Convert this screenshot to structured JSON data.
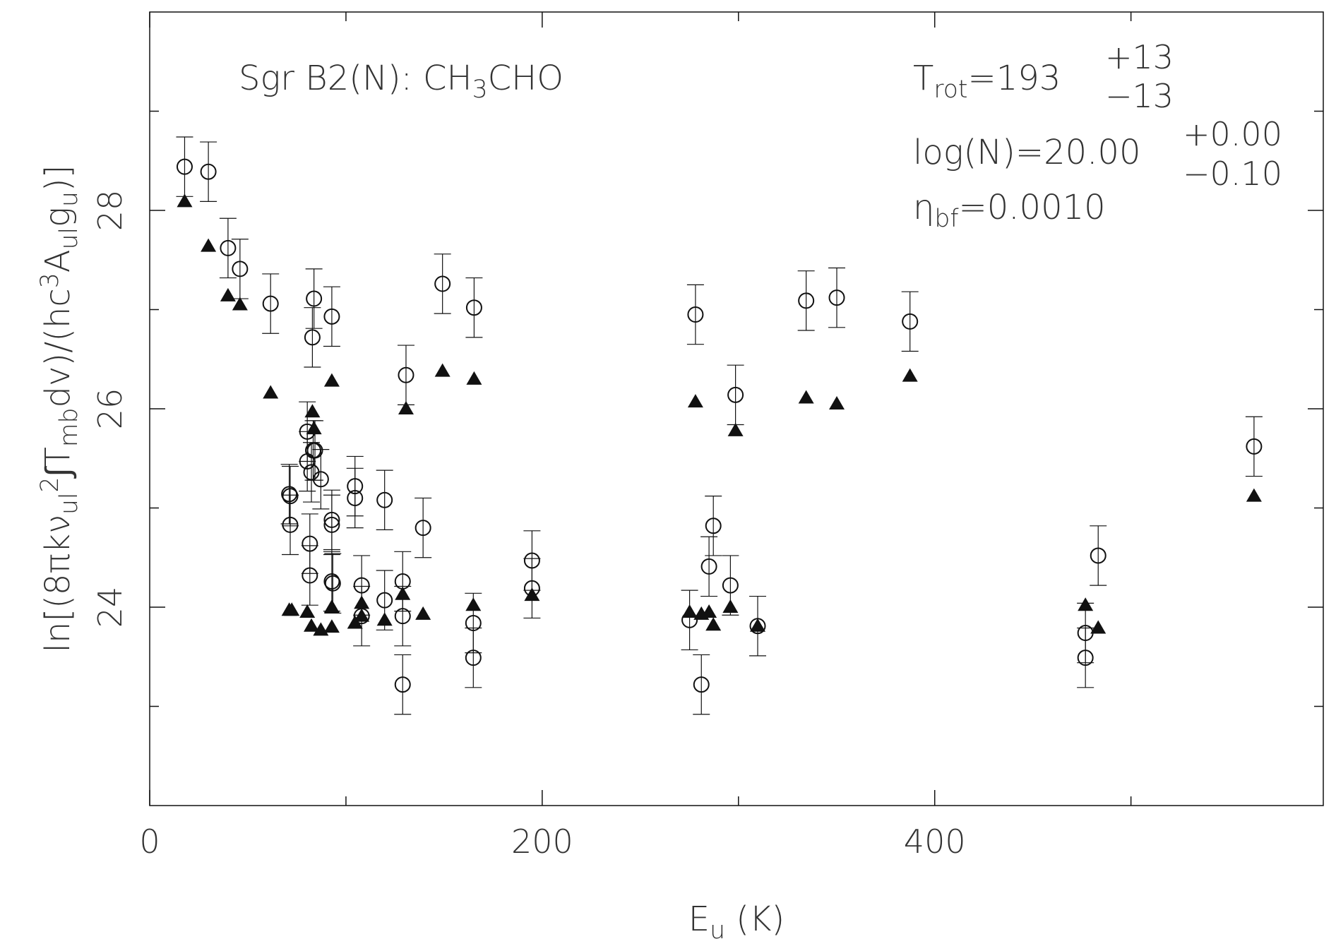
{
  "chart_data": {
    "type": "scatter",
    "xlabel": [
      {
        "text": "E"
      },
      {
        "text": "u",
        "shift": "sub"
      },
      {
        "text": " (K)"
      }
    ],
    "ylabel": [
      {
        "text": "ln[(8πkν"
      },
      {
        "text": "ul",
        "shift": "sub"
      },
      {
        "text": "2",
        "shift": "super"
      },
      {
        "text": "∫T"
      },
      {
        "text": "mb",
        "shift": "sub"
      },
      {
        "text": "dv)/(hc"
      },
      {
        "text": "3",
        "shift": "super"
      },
      {
        "text": "A"
      },
      {
        "text": "ul",
        "shift": "sub"
      },
      {
        "text": "g"
      },
      {
        "text": "u",
        "shift": "sub"
      },
      {
        "text": ")]"
      }
    ],
    "annotations": [
      {
        "parts": [
          {
            "text": "Sgr B2(N): CH"
          },
          {
            "text": "3",
            "shift": "sub"
          },
          {
            "text": "CHO"
          }
        ]
      },
      {
        "parts": [
          {
            "text": "T"
          },
          {
            "text": "rot",
            "shift": "sub"
          },
          {
            "text": "=193"
          }
        ],
        "plus": "+13",
        "minus": "−13"
      },
      {
        "parts": [
          {
            "text": "log(N)=20.00"
          }
        ],
        "plus": "+0.00",
        "minus": "−0.10"
      },
      {
        "parts": [
          {
            "text": "η"
          },
          {
            "text": "bf",
            "shift": "sub"
          },
          {
            "text": "=0.0010"
          }
        ]
      }
    ],
    "xlim": [
      0,
      598
    ],
    "xticks": [
      0,
      200,
      400
    ],
    "xminorticks": [
      100,
      300,
      500
    ],
    "ylim": [
      22,
      30
    ],
    "yticks": [
      24,
      26,
      28
    ],
    "yminorticks": [
      23,
      25,
      27,
      29
    ],
    "series": [
      {
        "marker": "open-circle",
        "color": "#111",
        "x": [
          17.8,
          29.9,
          39.9,
          46.0,
          61.6,
          83.7,
          82.9,
          92.8,
          149.2,
          165.3,
          130.6,
          278.1,
          334.5,
          350.1,
          387.4,
          298.5,
          562.7,
          80.3,
          80.3,
          83.3,
          84.2,
          82.4,
          87.2,
          71.1,
          71.6,
          71.6,
          81.6,
          81.6,
          92.8,
          92.8,
          92.8,
          93.3,
          104.6,
          104.6,
          119.7,
          139.3,
          108.0,
          108.0,
          119.7,
          128.9,
          128.9,
          128.9,
          164.9,
          164.9,
          194.8,
          194.8,
          275.1,
          281.1,
          285.0,
          287.2,
          295.9,
          309.8,
          476.8,
          476.8,
          483.3
        ],
        "values": [
          28.44,
          28.39,
          27.62,
          27.41,
          27.06,
          27.11,
          26.72,
          26.93,
          27.26,
          27.02,
          26.34,
          26.95,
          27.09,
          27.12,
          26.88,
          26.14,
          25.62,
          25.77,
          25.47,
          25.58,
          25.58,
          25.36,
          25.29,
          25.14,
          25.12,
          24.83,
          24.64,
          24.32,
          24.88,
          24.83,
          24.26,
          24.24,
          25.22,
          25.1,
          25.08,
          24.8,
          24.22,
          23.91,
          24.07,
          24.26,
          23.91,
          23.22,
          23.84,
          23.49,
          24.47,
          24.19,
          23.87,
          23.22,
          24.41,
          24.82,
          24.22,
          23.81,
          23.74,
          23.49,
          24.52
        ],
        "errors": [
          0.3,
          0.3,
          0.3,
          0.3,
          0.3,
          0.3,
          0.3,
          0.3,
          0.3,
          0.3,
          0.3,
          0.3,
          0.3,
          0.3,
          0.3,
          0.3,
          0.3,
          0.3,
          0.3,
          0.3,
          0.3,
          0.3,
          0.3,
          0.3,
          0.3,
          0.3,
          0.3,
          0.3,
          0.3,
          0.3,
          0.3,
          0.3,
          0.3,
          0.3,
          0.3,
          0.3,
          0.3,
          0.3,
          0.3,
          0.3,
          0.3,
          0.3,
          0.3,
          0.3,
          0.3,
          0.3,
          0.3,
          0.3,
          0.3,
          0.3,
          0.3,
          0.3,
          0.3,
          0.3,
          0.3
        ]
      },
      {
        "marker": "filled-triangle",
        "color": "#111",
        "x": [
          17.8,
          29.9,
          39.9,
          46.0,
          61.6,
          82.9,
          83.7,
          92.8,
          149.2,
          165.3,
          130.6,
          278.1,
          334.5,
          350.1,
          387.4,
          298.5,
          562.7,
          71.1,
          72.4,
          80.3,
          82.4,
          87.2,
          92.8,
          92.8,
          104.6,
          108.0,
          108.0,
          119.7,
          128.9,
          139.3,
          164.9,
          194.8,
          275.1,
          281.1,
          285.0,
          287.2,
          295.9,
          309.8,
          476.8,
          483.3
        ],
        "values": [
          28.09,
          27.64,
          27.14,
          27.05,
          26.16,
          25.97,
          25.8,
          26.28,
          26.38,
          26.3,
          26.0,
          26.07,
          26.11,
          26.05,
          26.33,
          25.78,
          25.12,
          23.97,
          23.97,
          23.95,
          23.81,
          23.77,
          23.8,
          24.0,
          23.84,
          24.04,
          23.91,
          23.87,
          24.13,
          23.93,
          24.02,
          24.12,
          23.95,
          23.93,
          23.95,
          23.82,
          24.0,
          23.81,
          24.02,
          23.79
        ]
      }
    ]
  }
}
